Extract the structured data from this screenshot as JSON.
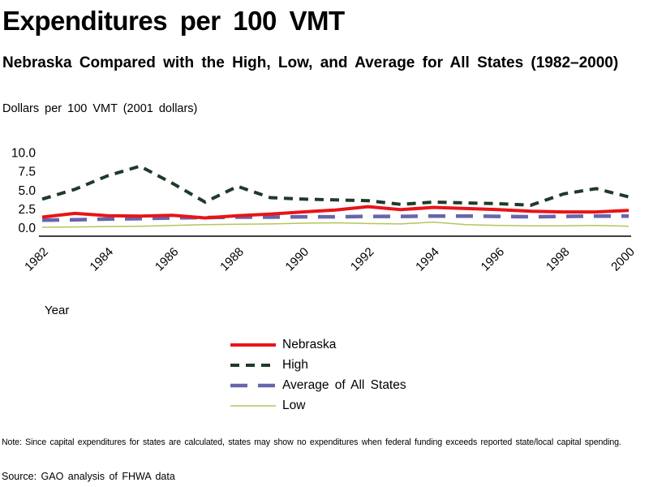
{
  "header": {
    "title": "Expenditures per 100 VMT",
    "subtitle": "Nebraska Compared with the High, Low, and Average for All States (1982–2000)"
  },
  "chart_data": {
    "type": "line",
    "title": "Expenditures per 100 VMT",
    "subtitle": "Nebraska Compared with the High, Low, and Average for All States (1982–2000)",
    "ylabel": "Dollars per 100 VMT (2001 dollars)",
    "xlabel": "Year",
    "x": [
      1982,
      1983,
      1984,
      1985,
      1986,
      1987,
      1988,
      1989,
      1990,
      1991,
      1992,
      1993,
      1994,
      1995,
      1996,
      1997,
      1998,
      1999,
      2000
    ],
    "x_tick_labels": [
      "1982",
      "1984",
      "1986",
      "1988",
      "1990",
      "1992",
      "1994",
      "1996",
      "1998",
      "2000"
    ],
    "y_tick_labels": [
      "0.0",
      "2.5",
      "5.0",
      "7.5",
      "10.0"
    ],
    "ylim": [
      0,
      10
    ],
    "grid": false,
    "legend_position": "bottom-center",
    "series": [
      {
        "name": "Nebraska",
        "color": "#e81418",
        "line_style": "solid",
        "line_width": 4,
        "values": [
          1.4,
          1.9,
          1.6,
          1.55,
          1.65,
          1.3,
          1.6,
          1.8,
          2.1,
          2.35,
          2.8,
          2.4,
          2.7,
          2.55,
          2.4,
          2.2,
          2.1,
          2.1,
          2.3
        ]
      },
      {
        "name": "High",
        "color": "#1e3b28",
        "line_style": "dashed-short",
        "line_width": 4,
        "values": [
          3.8,
          5.1,
          6.9,
          8.2,
          5.9,
          3.4,
          5.5,
          4.0,
          3.8,
          3.7,
          3.6,
          3.1,
          3.4,
          3.3,
          3.2,
          3.0,
          4.5,
          5.2,
          4.1
        ]
      },
      {
        "name": "Average of All States",
        "color": "#6666aa",
        "line_style": "dashed-long",
        "line_width": 4.5,
        "values": [
          1.0,
          1.05,
          1.15,
          1.2,
          1.3,
          1.35,
          1.4,
          1.4,
          1.45,
          1.45,
          1.5,
          1.5,
          1.55,
          1.55,
          1.5,
          1.45,
          1.5,
          1.55,
          1.55
        ]
      },
      {
        "name": "Low",
        "color": "#b6c45e",
        "line_style": "solid",
        "line_width": 1.5,
        "values": [
          0.05,
          0.1,
          0.15,
          0.2,
          0.3,
          0.4,
          0.45,
          0.5,
          0.6,
          0.65,
          0.55,
          0.5,
          0.75,
          0.4,
          0.3,
          0.25,
          0.25,
          0.3,
          0.2
        ]
      }
    ]
  },
  "footer": {
    "note": "Note: Since capital expenditures for states are calculated, states may show no expenditures when federal funding exceeds reported state/local capital spending.",
    "source": "Source: GAO analysis of FHWA data"
  }
}
